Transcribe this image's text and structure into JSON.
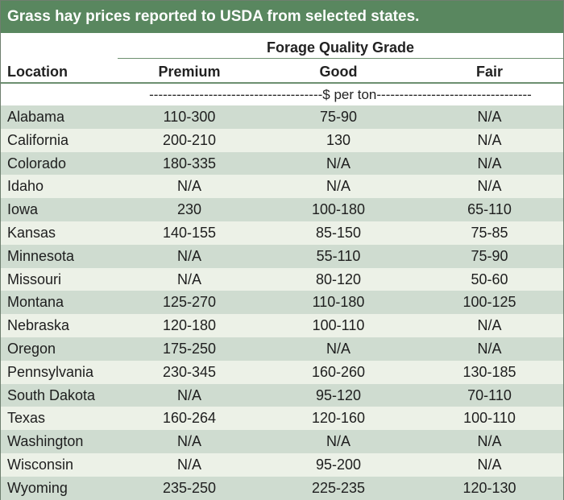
{
  "title": "Grass hay prices reported to USDA from selected states.",
  "group_header": "Forage Quality Grade",
  "columns": {
    "location": "Location",
    "premium": "Premium",
    "good": "Good",
    "fair": "Fair"
  },
  "unit_label": "--------------------------------------$ per ton----------------------------------",
  "colors": {
    "title_bg": "#59875f",
    "row_dark": "#cfdcd0",
    "row_light": "#ecf1e7",
    "rule": "#6d8f70"
  },
  "rows": [
    {
      "location": "Alabama",
      "premium": "110-300",
      "good": "75-90",
      "fair": "N/A"
    },
    {
      "location": "California",
      "premium": "200-210",
      "good": "130",
      "fair": "N/A"
    },
    {
      "location": "Colorado",
      "premium": "180-335",
      "good": "N/A",
      "fair": "N/A"
    },
    {
      "location": "Idaho",
      "premium": "N/A",
      "good": "N/A",
      "fair": "N/A"
    },
    {
      "location": "Iowa",
      "premium": "230",
      "good": "100-180",
      "fair": "65-110"
    },
    {
      "location": "Kansas",
      "premium": "140-155",
      "good": "85-150",
      "fair": "75-85"
    },
    {
      "location": "Minnesota",
      "premium": "N/A",
      "good": "55-110",
      "fair": "75-90"
    },
    {
      "location": "Missouri",
      "premium": "N/A",
      "good": "80-120",
      "fair": "50-60"
    },
    {
      "location": "Montana",
      "premium": "125-270",
      "good": "110-180",
      "fair": "100-125"
    },
    {
      "location": "Nebraska",
      "premium": "120-180",
      "good": "100-110",
      "fair": "N/A"
    },
    {
      "location": "Oregon",
      "premium": "175-250",
      "good": "N/A",
      "fair": "N/A"
    },
    {
      "location": "Pennsylvania",
      "premium": "230-345",
      "good": "160-260",
      "fair": "130-185"
    },
    {
      "location": "South Dakota",
      "premium": "N/A",
      "good": "95-120",
      "fair": "70-110"
    },
    {
      "location": "Texas",
      "premium": "160-264",
      "good": "120-160",
      "fair": "100-110"
    },
    {
      "location": "Washington",
      "premium": "N/A",
      "good": "N/A",
      "fair": "N/A"
    },
    {
      "location": "Wisconsin",
      "premium": "N/A",
      "good": "95-200",
      "fair": "N/A"
    },
    {
      "location": "Wyoming",
      "premium": "235-250",
      "good": "225-235",
      "fair": "120-130"
    }
  ]
}
